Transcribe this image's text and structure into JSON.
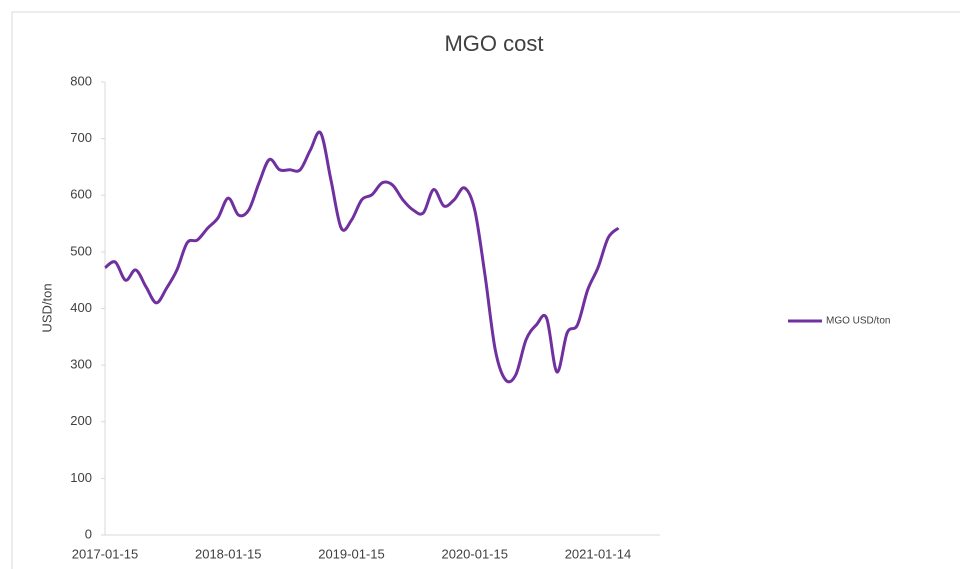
{
  "chart_data": {
    "type": "line",
    "title": "MGO cost",
    "y_label": "USD/ton",
    "categories": [
      "2017-01-15",
      null,
      null,
      null,
      null,
      null,
      null,
      null,
      null,
      null,
      null,
      null,
      "2018-01-15",
      null,
      null,
      null,
      null,
      null,
      null,
      null,
      null,
      null,
      null,
      null,
      "2019-01-15",
      null,
      null,
      null,
      null,
      null,
      null,
      null,
      null,
      null,
      null,
      null,
      "2020-01-15",
      null,
      null,
      null,
      null,
      null,
      null,
      null,
      null,
      null,
      null,
      null,
      "2021-01-14",
      null,
      null
    ],
    "series": [
      {
        "name": "MGO USD/ton",
        "color": "#7030a0",
        "values": [
          472,
          482,
          450,
          468,
          438,
          410,
          436,
          468,
          516,
          521,
          542,
          560,
          595,
          565,
          574,
          622,
          663,
          645,
          645,
          645,
          680,
          710,
          627,
          542,
          556,
          592,
          601,
          622,
          618,
          592,
          574,
          569,
          610,
          581,
          592,
          613,
          574,
          459,
          327,
          274,
          283,
          345,
          371,
          383,
          288,
          357,
          371,
          433,
          472,
          525,
          542
        ]
      }
    ],
    "ylim": [
      0,
      800
    ],
    "yticks": [
      0,
      100,
      200,
      300,
      400,
      500,
      600,
      700,
      800
    ],
    "legend": "right"
  }
}
